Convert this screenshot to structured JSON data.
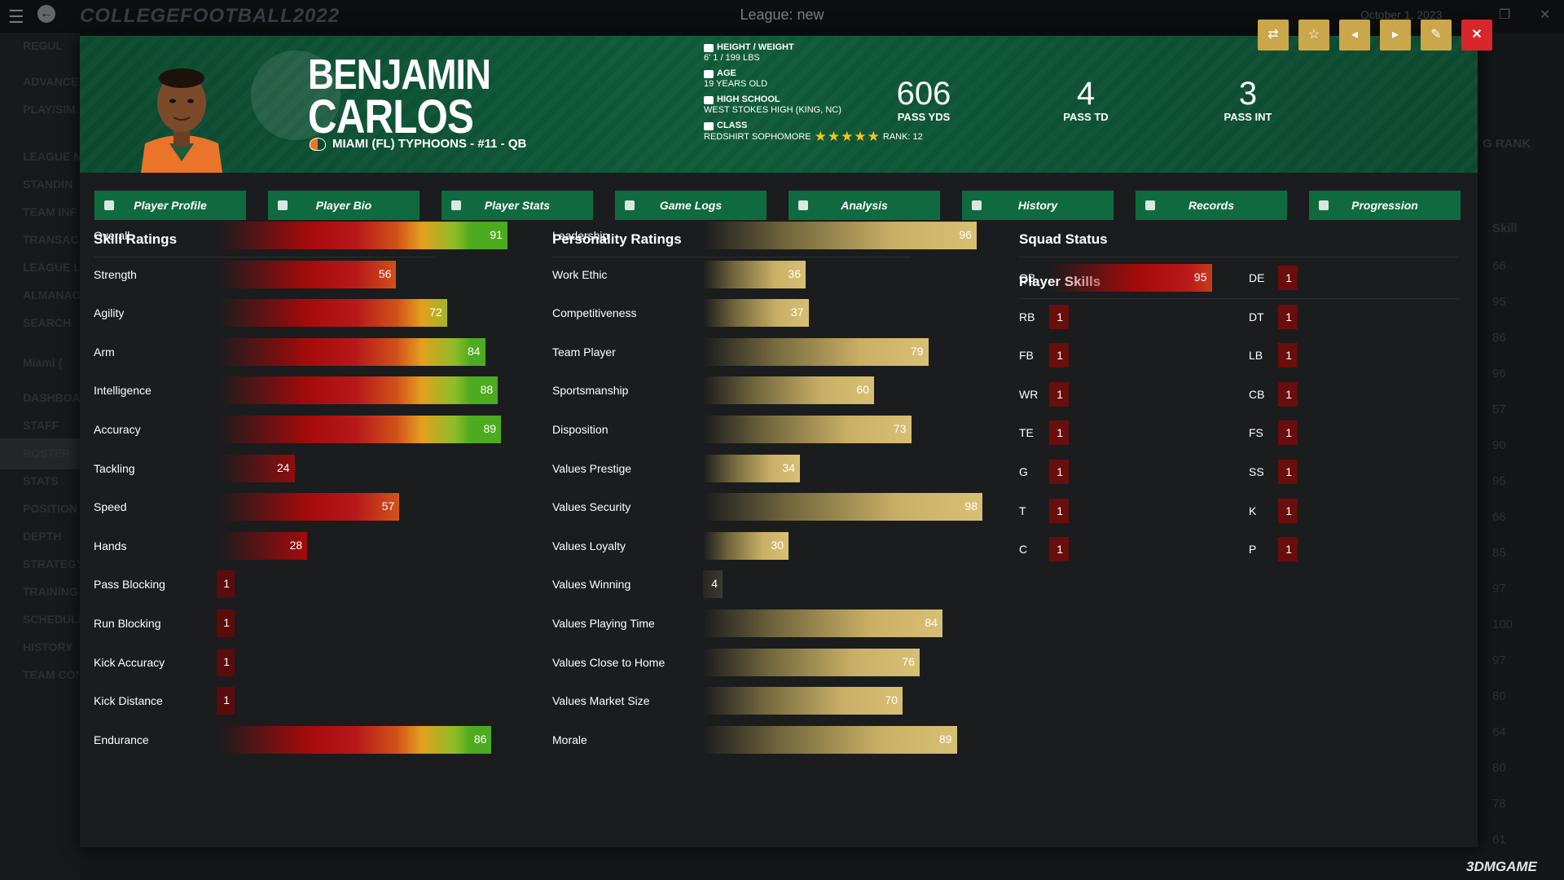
{
  "app": {
    "logo": "COLLEGEFOOTBALL2022",
    "league_title": "League: new",
    "date": "October 1, 2023"
  },
  "background_sidebar": [
    "REGUL",
    "ADVANCE",
    "PLAY/SIM",
    "LEAGUE M",
    "STANDIN",
    "TEAM INF",
    "TRANSAC",
    "LEAGUE LE",
    "ALMANAC",
    "SEARCH",
    "Miami (",
    "DASHBOA",
    "STAFF",
    "ROSTER",
    "STATS",
    "POSITION",
    "DEPTH",
    "STRATEGY",
    "TRAINING",
    "SCHEDULE",
    "HISTORY",
    "TEAM CON"
  ],
  "background_right": {
    "header": "G RANK",
    "col_label": "Skill",
    "values": [
      "66",
      "95",
      "86",
      "96",
      "57",
      "90",
      "95",
      "68",
      "85",
      "97",
      "100",
      "97",
      "80",
      "64",
      "80",
      "78",
      "61"
    ]
  },
  "player": {
    "first_name": "BENJAMIN",
    "last_name": "CARLOS",
    "team_line": "MIAMI (FL) TYPHOONS - #11 - QB",
    "height_weight_label": "HEIGHT / WEIGHT",
    "height_weight": "6' 1 / 199 LBS",
    "age_label": "AGE",
    "age": "19 YEARS OLD",
    "high_school_label": "HIGH SCHOOL",
    "high_school": "WEST STOKES HIGH (KING, NC)",
    "class_label": "CLASS",
    "class": "REDSHIRT SOPHOMORE",
    "star_rating": 5,
    "rank": "RANK: 12"
  },
  "header_stats": [
    {
      "value": "606",
      "label": "PASS YDS"
    },
    {
      "value": "4",
      "label": "PASS TD"
    },
    {
      "value": "3",
      "label": "PASS INT"
    }
  ],
  "header_buttons": [
    {
      "icon": "swap-icon",
      "glyph": "⇄"
    },
    {
      "icon": "star-icon",
      "glyph": "☆"
    },
    {
      "icon": "prev-icon",
      "glyph": "◂"
    },
    {
      "icon": "next-icon",
      "glyph": "▸"
    },
    {
      "icon": "edit-icon",
      "glyph": "✎"
    },
    {
      "icon": "close-icon",
      "glyph": "✕"
    }
  ],
  "tabs": [
    "Player Profile",
    "Player Bio",
    "Player Stats",
    "Game Logs",
    "Analysis",
    "History",
    "Records",
    "Progression"
  ],
  "skill_ratings": {
    "title": "Skill Ratings",
    "rows": [
      {
        "label": "Overall",
        "value": 91
      },
      {
        "label": "Strength",
        "value": 56
      },
      {
        "label": "Agility",
        "value": 72
      },
      {
        "label": "Arm",
        "value": 84
      },
      {
        "label": "Intelligence",
        "value": 88
      },
      {
        "label": "Accuracy",
        "value": 89
      },
      {
        "label": "Tackling",
        "value": 24
      },
      {
        "label": "Speed",
        "value": 57
      },
      {
        "label": "Hands",
        "value": 28
      },
      {
        "label": "Pass Blocking",
        "value": 1
      },
      {
        "label": "Run Blocking",
        "value": 1
      },
      {
        "label": "Kick Accuracy",
        "value": 1
      },
      {
        "label": "Kick Distance",
        "value": 1
      },
      {
        "label": "Endurance",
        "value": 86
      }
    ]
  },
  "personality_ratings": {
    "title": "Personality Ratings",
    "rows": [
      {
        "label": "Leadership",
        "value": 96
      },
      {
        "label": "Work Ethic",
        "value": 36
      },
      {
        "label": "Competitiveness",
        "value": 37
      },
      {
        "label": "Team Player",
        "value": 79
      },
      {
        "label": "Sportsmanship",
        "value": 60
      },
      {
        "label": "Disposition",
        "value": 73
      },
      {
        "label": "Values Prestige",
        "value": 34
      },
      {
        "label": "Values Security",
        "value": 98
      },
      {
        "label": "Values Loyalty",
        "value": 30
      },
      {
        "label": "Values Winning",
        "value": 4
      },
      {
        "label": "Values Playing Time",
        "value": 84
      },
      {
        "label": "Values Close to Home",
        "value": 76
      },
      {
        "label": "Values Market Size",
        "value": 70
      },
      {
        "label": "Morale",
        "value": 89
      }
    ]
  },
  "squad_status": {
    "title": "Squad Status",
    "skills_title": "Player Skills",
    "left": [
      {
        "pos": "QB",
        "value": 95
      },
      {
        "pos": "RB",
        "value": 1
      },
      {
        "pos": "FB",
        "value": 1
      },
      {
        "pos": "WR",
        "value": 1
      },
      {
        "pos": "TE",
        "value": 1
      },
      {
        "pos": "G",
        "value": 1
      },
      {
        "pos": "T",
        "value": 1
      },
      {
        "pos": "C",
        "value": 1
      }
    ],
    "right": [
      {
        "pos": "DE",
        "value": 1
      },
      {
        "pos": "DT",
        "value": 1
      },
      {
        "pos": "LB",
        "value": 1
      },
      {
        "pos": "CB",
        "value": 1
      },
      {
        "pos": "FS",
        "value": 1
      },
      {
        "pos": "SS",
        "value": 1
      },
      {
        "pos": "K",
        "value": 1
      },
      {
        "pos": "P",
        "value": 1
      }
    ]
  },
  "watermark": "3DMGAME"
}
